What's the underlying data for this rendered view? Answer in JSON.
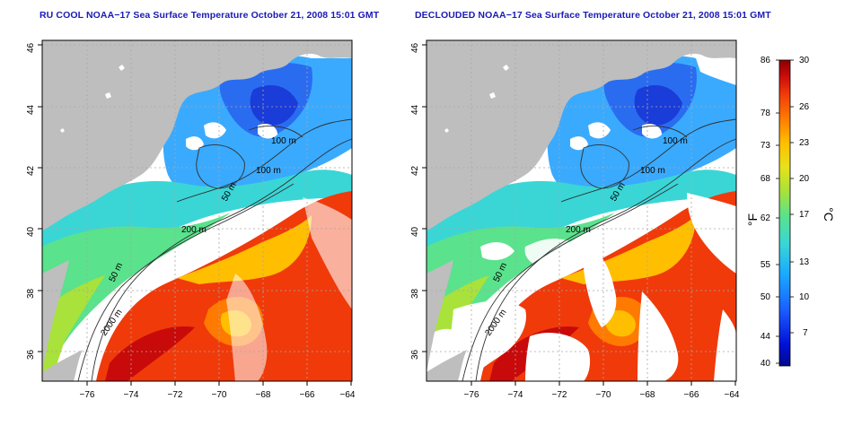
{
  "titles": {
    "left": "RU COOL NOAA−17 Sea Surface Temperature October 21, 2008 15:01 GMT",
    "right": "DECLOUDED NOAA−17 Sea Surface Temperature October 21, 2008 15:01 GMT"
  },
  "axes": {
    "lon_ticks": [
      "−76",
      "−74",
      "−72",
      "−70",
      "−68",
      "−66",
      "−64"
    ],
    "lat_ticks": [
      "36",
      "38",
      "40",
      "42",
      "44",
      "46"
    ]
  },
  "contours": {
    "left": [
      "100 m",
      "100 m",
      "50 m",
      "200 m",
      "50 m",
      "2000 m"
    ],
    "right": [
      "100 m",
      "100 m",
      "50 m",
      "200 m",
      "50 m",
      "2000 m"
    ]
  },
  "colorbar": {
    "fahrenheit_ticks": [
      "86",
      "78",
      "73",
      "68",
      "62",
      "55",
      "50",
      "44",
      "40"
    ],
    "celsius_ticks": [
      "30",
      "26",
      "23",
      "20",
      "17",
      "13",
      "10",
      "7"
    ],
    "fahrenheit_unit": "°F",
    "celsius_unit": "°C",
    "range_c": [
      4.4,
      30
    ],
    "colors": [
      "#000a8c",
      "#0010d8",
      "#1a5cff",
      "#1aaaff",
      "#3ad6d6",
      "#5ae28c",
      "#a8e23a",
      "#e6e21a",
      "#ffbe00",
      "#ff7a00",
      "#f03a0a",
      "#c80a0a",
      "#8c0000"
    ]
  },
  "map_colors": {
    "land": "#bebebe",
    "cloud": "#ffffff",
    "grid": "#a8a8a8"
  }
}
